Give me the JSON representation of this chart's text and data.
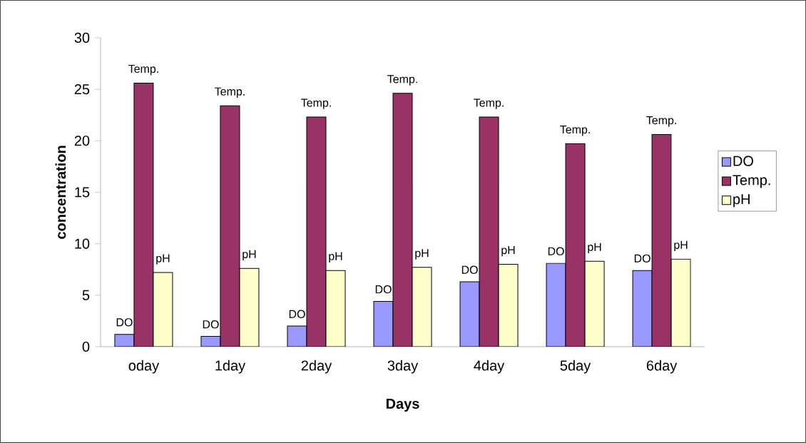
{
  "chart_data": {
    "type": "bar",
    "xlabel": "Days",
    "ylabel": "concentration",
    "categories": [
      "oday",
      "1day",
      "2day",
      "3day",
      "4day",
      "5day",
      "6day"
    ],
    "series": [
      {
        "name": "DO",
        "color": "#9999ff",
        "values": [
          1.2,
          1.0,
          2.0,
          4.4,
          6.3,
          8.1,
          7.4
        ],
        "value_labels": [
          "DO",
          "DO",
          "DO",
          "DO",
          "DO",
          "DO",
          "DO"
        ]
      },
      {
        "name": "Temp.",
        "color": "#993366",
        "values": [
          25.6,
          23.4,
          22.3,
          24.6,
          22.3,
          19.7,
          20.6
        ],
        "value_labels": [
          "Temp.",
          "Temp.",
          "Temp.",
          "Temp.",
          "Temp.",
          "Temp.",
          "Temp."
        ]
      },
      {
        "name": "pH",
        "color": "#ffffcc",
        "values": [
          7.2,
          7.6,
          7.4,
          7.7,
          8.0,
          8.3,
          8.5
        ],
        "value_labels": [
          "pH",
          "pH",
          "pH",
          "pH",
          "pH",
          "pH",
          "pH"
        ]
      }
    ],
    "ylim": [
      0,
      30
    ],
    "yticks": [
      0,
      5,
      10,
      15,
      20,
      25,
      30
    ],
    "grid": false,
    "legend": "right"
  }
}
